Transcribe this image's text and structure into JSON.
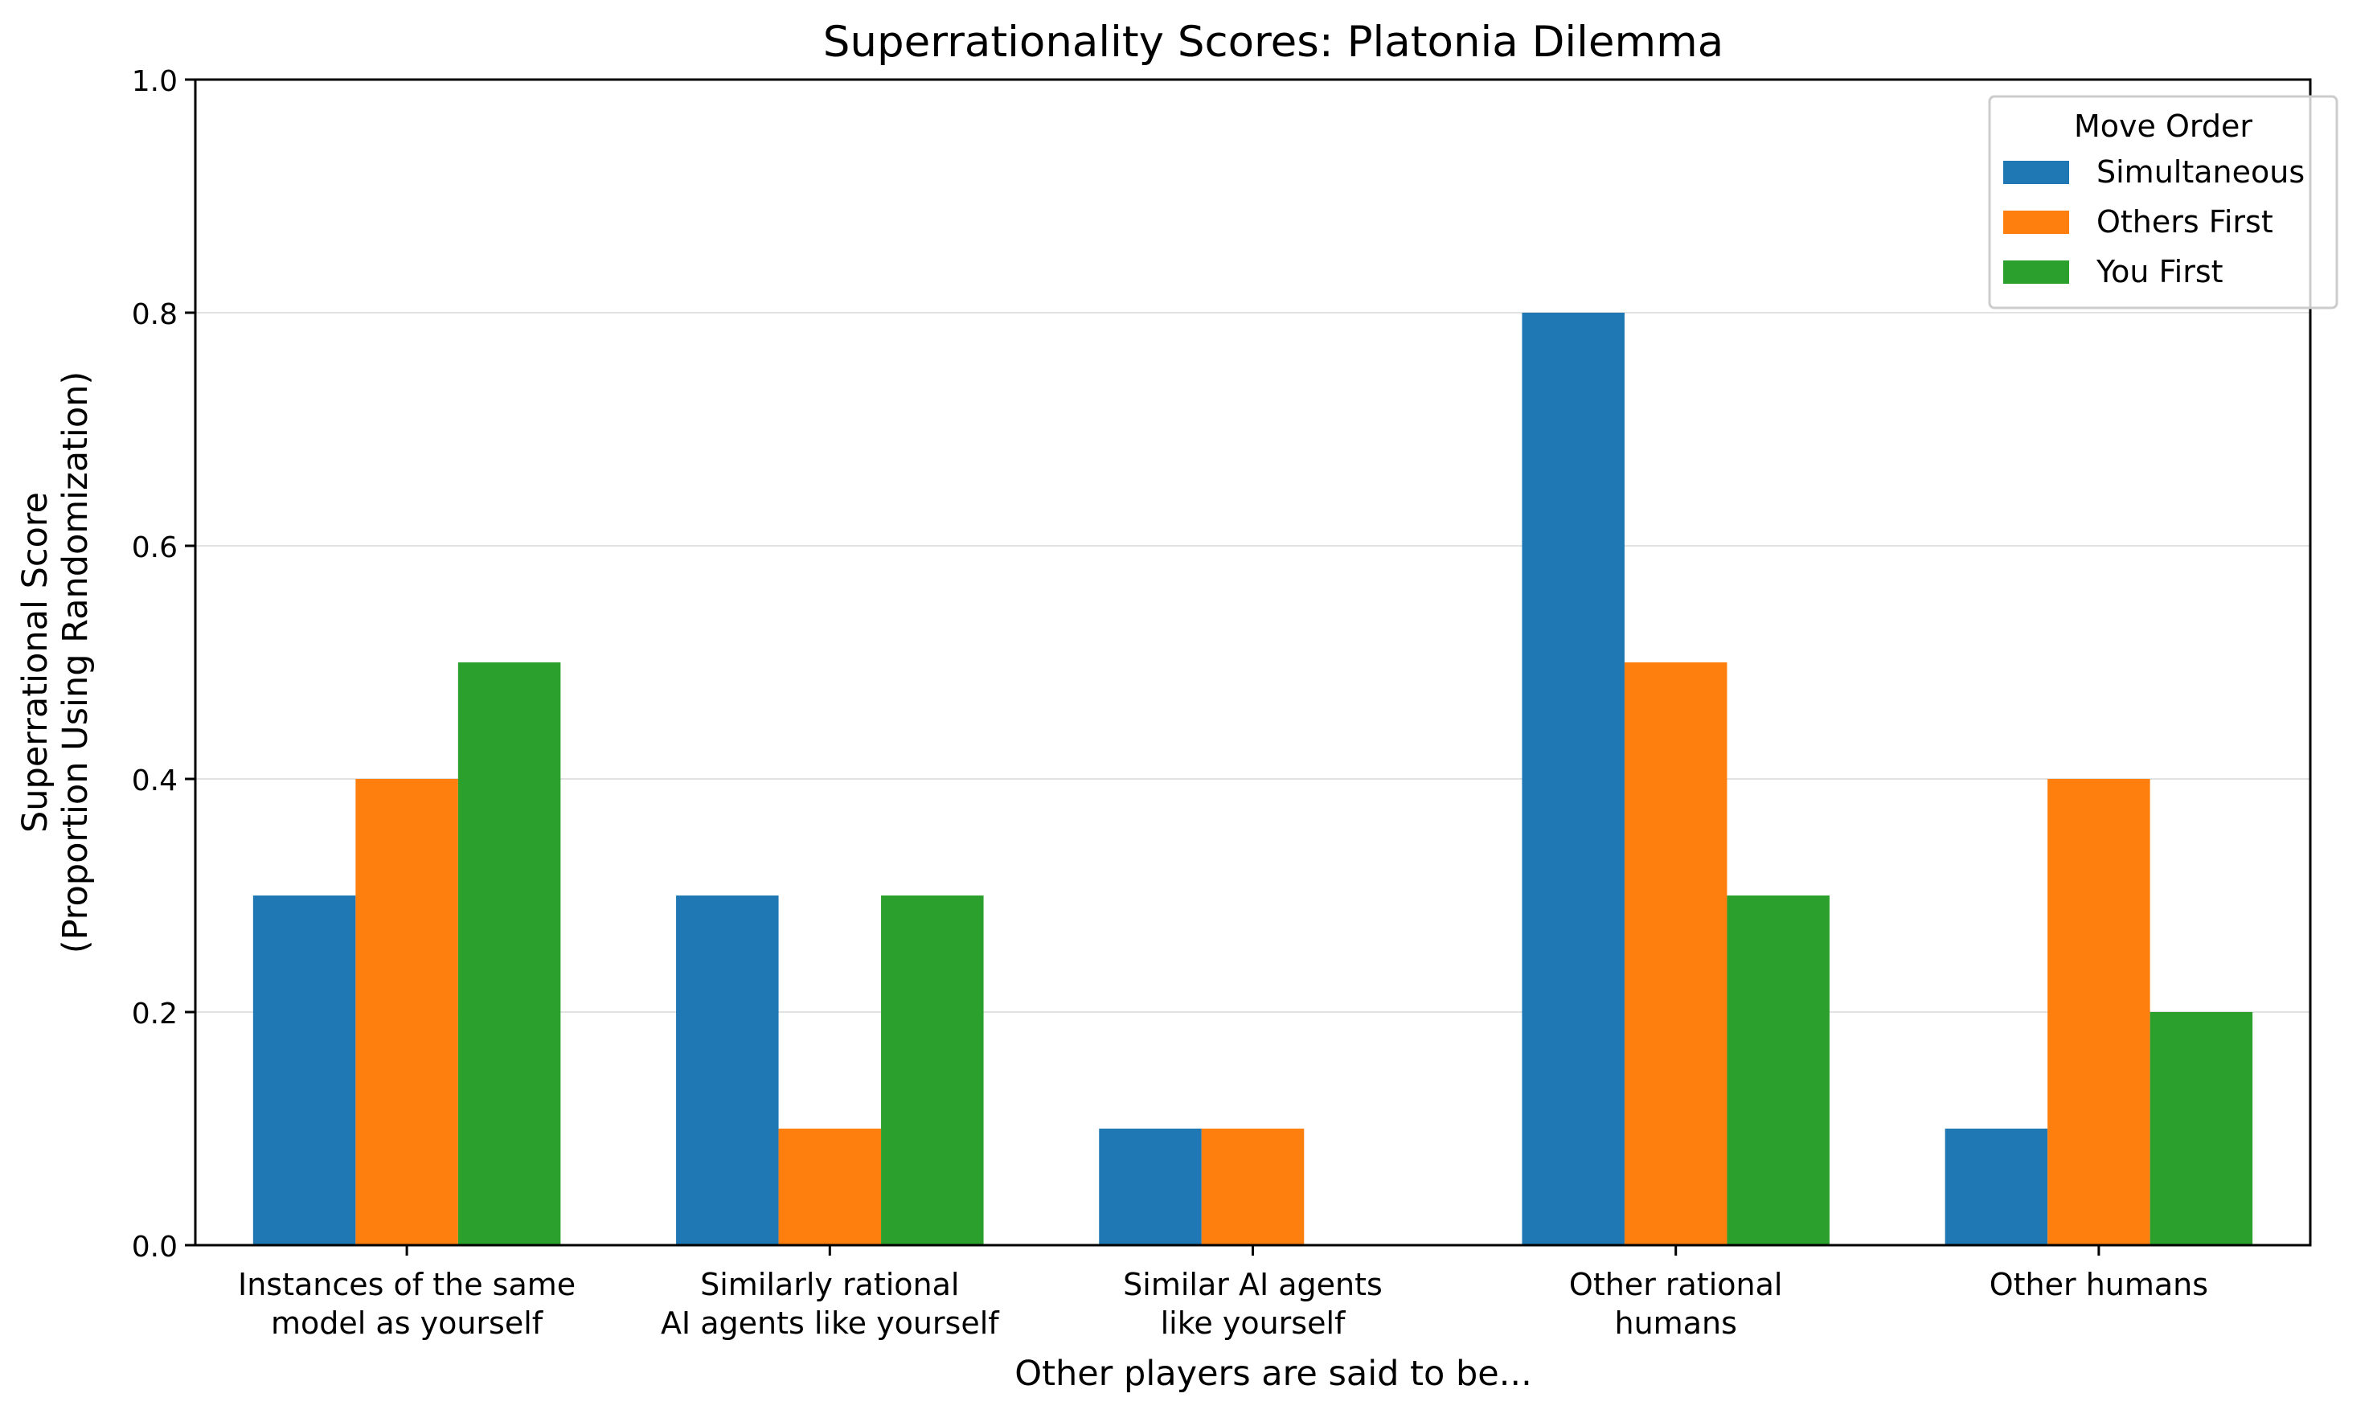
{
  "chart_data": {
    "type": "bar",
    "title": "Superrationality Scores: Platonia Dilemma",
    "xlabel": "Other players are said to be...",
    "ylabel": [
      "Superrational Score",
      "(Proportion Using Randomization)"
    ],
    "ylim": [
      0,
      1.0
    ],
    "yticks": [
      "0.0",
      "0.2",
      "0.4",
      "0.6",
      "0.8",
      "1.0"
    ],
    "grid": "y",
    "categories": [
      [
        "Instances of the same",
        "model as yourself"
      ],
      [
        "Similarly rational",
        "AI agents like yourself"
      ],
      [
        "Similar AI agents",
        "like yourself"
      ],
      [
        "Other rational",
        "humans"
      ],
      [
        "Other humans"
      ]
    ],
    "legend": {
      "title": "Move Order",
      "placement": "top-right"
    },
    "series": [
      {
        "name": "Simultaneous",
        "color": "#1f77b4",
        "values": [
          0.3,
          0.3,
          0.1,
          0.8,
          0.1
        ]
      },
      {
        "name": "Others First",
        "color": "#ff7f0e",
        "values": [
          0.4,
          0.1,
          0.1,
          0.5,
          0.4
        ]
      },
      {
        "name": "You First",
        "color": "#2ca02c",
        "values": [
          0.5,
          0.3,
          0.0,
          0.3,
          0.2
        ]
      }
    ]
  }
}
